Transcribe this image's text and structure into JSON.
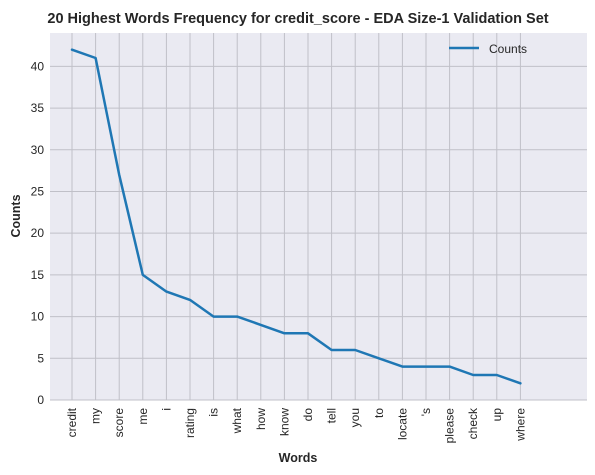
{
  "chart_data": {
    "type": "line",
    "title": "20 Highest Words Frequency for credit_score - EDA Size-1 Validation Set",
    "xlabel": "Words",
    "ylabel": "Counts",
    "ylim": [
      0,
      44
    ],
    "yticks": [
      0,
      5,
      10,
      15,
      20,
      25,
      30,
      35,
      40
    ],
    "grid": true,
    "legend_position": "top-right",
    "categories": [
      "credit",
      "my",
      "score",
      "me",
      "i",
      "rating",
      "is",
      "what",
      "how",
      "know",
      "do",
      "tell",
      "you",
      "to",
      "locate",
      "'s",
      "please",
      "check",
      "up",
      "where"
    ],
    "series": [
      {
        "name": "Counts",
        "color": "#1f77b4",
        "values": [
          42,
          41,
          27,
          15,
          13,
          12,
          10,
          10,
          9,
          8,
          8,
          6,
          6,
          5,
          4,
          4,
          4,
          3,
          3,
          2
        ]
      }
    ]
  },
  "colors": {
    "plot_background": "#eaeaf2",
    "grid": "#c0c0c8",
    "text": "#262626"
  }
}
